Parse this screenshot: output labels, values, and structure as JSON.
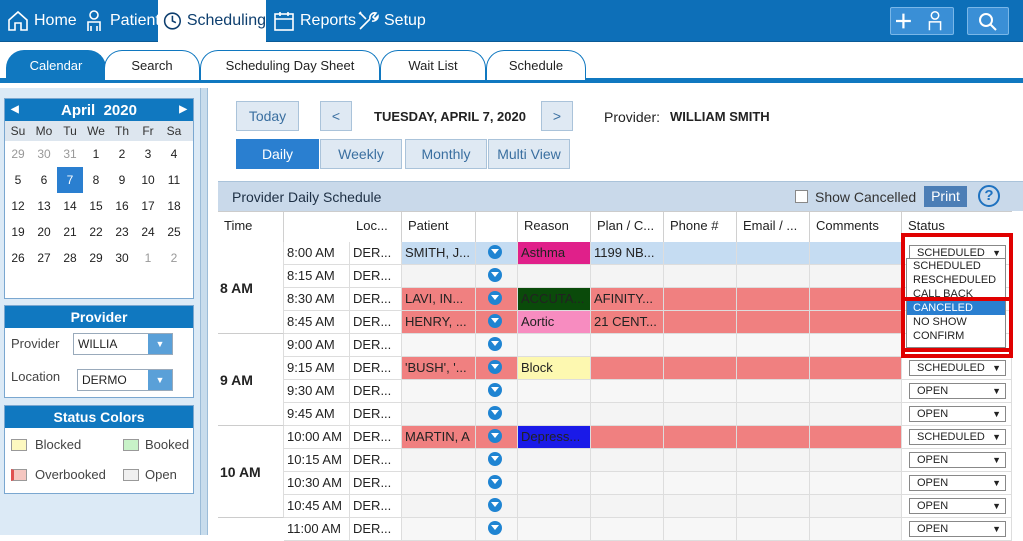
{
  "nav": {
    "home": "Home",
    "patient": "Patient",
    "scheduling": "Scheduling",
    "reports": "Reports",
    "setup": "Setup"
  },
  "tabs": [
    "Calendar",
    "Search",
    "Scheduling Day Sheet",
    "Wait List",
    "Schedule"
  ],
  "calendar": {
    "month": "April",
    "year": "2020",
    "dows": [
      "Su",
      "Mo",
      "Tu",
      "We",
      "Th",
      "Fr",
      "Sa"
    ],
    "days": [
      "29",
      "30",
      "31",
      "1",
      "2",
      "3",
      "4",
      "5",
      "6",
      "7",
      "8",
      "9",
      "10",
      "11",
      "12",
      "13",
      "14",
      "15",
      "16",
      "17",
      "18",
      "19",
      "20",
      "21",
      "22",
      "23",
      "24",
      "25",
      "26",
      "27",
      "28",
      "29",
      "30",
      "1",
      "2"
    ],
    "selected": "7"
  },
  "provider_panel": {
    "title": "Provider",
    "provider_label": "Provider",
    "provider_value": "WILLIA",
    "location_label": "Location",
    "location_value": "DERMO"
  },
  "status_colors": {
    "title": "Status Colors",
    "items": [
      {
        "label": "Blocked",
        "color": "#fdf8c0"
      },
      {
        "label": "Booked",
        "color": "#c8f2c8"
      },
      {
        "label": "Overbooked",
        "color": "#f5c6c0"
      },
      {
        "label": "Open",
        "color": "#f0f0f0"
      }
    ]
  },
  "toolbar": {
    "today": "Today",
    "prev": "<",
    "next": ">",
    "date": "TUESDAY, APRIL 7, 2020",
    "provider_label": "Provider:",
    "provider_name": "WILLIAM SMITH",
    "views": [
      "Daily",
      "Weekly",
      "Monthly",
      "Multi View"
    ]
  },
  "schedule": {
    "title": "Provider Daily Schedule",
    "show_cancelled": "Show Cancelled",
    "print": "Print",
    "help": "?",
    "columns": [
      "Time",
      "Loc...",
      "Patient",
      "",
      "Reason",
      "Plan / C...",
      "Phone #",
      "Email / ...",
      "Comments",
      "Status"
    ],
    "hours": [
      "8 AM",
      "9 AM",
      "10 AM"
    ],
    "rows": [
      {
        "time": "8:00 AM",
        "loc": "DER...",
        "patient": "SMITH, J...",
        "reason": "Asthma",
        "plan": "1199 NB...",
        "status": "SCHEDULED"
      },
      {
        "time": "8:15 AM",
        "loc": "DER...",
        "patient": "",
        "reason": "",
        "plan": "",
        "status": ""
      },
      {
        "time": "8:30 AM",
        "loc": "DER...",
        "patient": "LAVI, IN...",
        "reason": "ACCUTA...",
        "plan": "AFINITY...",
        "status": ""
      },
      {
        "time": "8:45 AM",
        "loc": "DER...",
        "patient": "HENRY, ...",
        "reason": "Aortic",
        "plan": "21 CENT...",
        "status": ""
      },
      {
        "time": "9:00 AM",
        "loc": "DER...",
        "patient": "",
        "reason": "",
        "plan": "",
        "status": ""
      },
      {
        "time": "9:15 AM",
        "loc": "DER...",
        "patient": "'BUSH', '...",
        "reason": "Block",
        "plan": "",
        "status": "SCHEDULED"
      },
      {
        "time": "9:30 AM",
        "loc": "DER...",
        "patient": "",
        "reason": "",
        "plan": "",
        "status": "OPEN"
      },
      {
        "time": "9:45 AM",
        "loc": "DER...",
        "patient": "",
        "reason": "",
        "plan": "",
        "status": "OPEN"
      },
      {
        "time": "10:00 AM",
        "loc": "DER...",
        "patient": "MARTIN, A",
        "reason": "Depress...",
        "plan": "",
        "status": "SCHEDULED"
      },
      {
        "time": "10:15 AM",
        "loc": "DER...",
        "patient": "",
        "reason": "",
        "plan": "",
        "status": "OPEN"
      },
      {
        "time": "10:30 AM",
        "loc": "DER...",
        "patient": "",
        "reason": "",
        "plan": "",
        "status": "OPEN"
      },
      {
        "time": "10:45 AM",
        "loc": "DER...",
        "patient": "",
        "reason": "",
        "plan": "",
        "status": "OPEN"
      },
      {
        "time": "11:00 AM",
        "loc": "DER...",
        "patient": "",
        "reason": "",
        "plan": "",
        "status": "OPEN"
      }
    ],
    "status_options": [
      "SCHEDULED",
      "RESCHEDULED",
      "CALL BACK",
      "CANCELED",
      "NO SHOW",
      "CONFIRM"
    ]
  }
}
